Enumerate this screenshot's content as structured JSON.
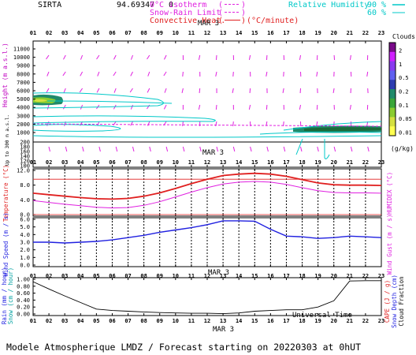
{
  "header": {
    "site": "SIRTA",
    "coords": "94.69347",
    "coords_suffix": "0",
    "legend_left": [
      {
        "label": "0°C isotherm",
        "swatch": "(---)",
        "color": "#e020e0"
      },
      {
        "label": "Snow-Rain Limit",
        "swatch": "(---)",
        "color": "#e020e0"
      },
      {
        "label": "Convective Heat.",
        "swatch": "(——)",
        "unit": "(°C/minute)",
        "color": "#e02020"
      }
    ],
    "rh_title": "Relative Humidity",
    "rh_levels": [
      "90 %",
      "60 %"
    ],
    "rh_color": "#00c8c8"
  },
  "colors": {
    "magenta": "#e020e0",
    "red": "#e02020",
    "blue": "#2020e0",
    "cyan": "#00c8c8",
    "black": "#000000"
  },
  "date_label": "MAR  3",
  "hours": [
    "01",
    "02",
    "03",
    "04",
    "05",
    "06",
    "07",
    "08",
    "09",
    "10",
    "11",
    "12",
    "13",
    "14",
    "15",
    "16",
    "17",
    "18",
    "19",
    "20",
    "21",
    "22",
    "23"
  ],
  "panels": {
    "height": {
      "ylabel": "Height  (m  a.s.l.)",
      "ylabel_low": "Up to 300 m  a.s.l.",
      "ticks_upper": [
        "11000",
        "10000",
        "9000",
        "8000",
        "7000",
        "6000",
        "5000",
        "4000",
        "3000",
        "2000",
        "1000"
      ],
      "ticks_lower": [
        "200",
        "180",
        "160",
        "140",
        "120",
        "100"
      ],
      "clouds_title": "Clouds",
      "clouds_levels": [
        "1",
        "0.5",
        "0.2",
        "0.1",
        "0.05",
        "0.01"
      ],
      "clouds_ticks": [
        "2",
        "1",
        "0.5",
        "0.2",
        "0.1",
        "0.05",
        "0.01"
      ],
      "clouds_unit": "(g/kg)",
      "clouds_colors": [
        "#7a0a8a",
        "#d020ff",
        "#8a3af0",
        "#6060f0",
        "#2d3db0",
        "#1f8a6a",
        "#3aa63a",
        "#8acc30",
        "#d4e040",
        "#ffff50"
      ]
    },
    "temperature": {
      "ylabel": "Temperature (°C)",
      "ylabel_right": "HUMIDEX (°C)",
      "ticks": [
        "12.0",
        "8.0",
        "4.0",
        "0.0"
      ],
      "ylim": [
        0,
        12
      ]
    },
    "wind": {
      "ylabel": "Wind Speed (m / s)",
      "ylabel_right": "Wind Gust (m / s)",
      "ticks": [
        "6.0",
        "5.0",
        "4.0",
        "3.0",
        "2.0",
        "1.0",
        "0.0"
      ],
      "ylim": [
        0,
        6
      ]
    },
    "rain": {
      "ylabel": "Rain (mm / hour)",
      "ylabel2": "Snow (cm / hour)",
      "ylabel_right": "CAPE (J / g)",
      "ylabel_right2": "Snow Depth (cm)",
      "ylabel_right3": "Cloud Fraction",
      "ticks": [
        "1.00",
        "0.80",
        "0.60",
        "0.40",
        "0.20",
        "0.00"
      ],
      "ylim": [
        0,
        1
      ]
    }
  },
  "xlabel": "Universal Time",
  "footer": "Modele Atmospherique LMDZ / Forecast starting on 20220303 at 0hUT",
  "chart_data": [
    {
      "type": "line",
      "title": "Temperature / HUMIDEX",
      "x": [
        1,
        2,
        3,
        4,
        5,
        6,
        7,
        8,
        9,
        10,
        11,
        12,
        13,
        14,
        15,
        16,
        17,
        18,
        19,
        20,
        21,
        22,
        23
      ],
      "ylim": [
        0,
        12
      ],
      "series": [
        {
          "name": "Temperature",
          "color": "#e02020",
          "values": [
            5.8,
            5.4,
            5.0,
            4.6,
            4.3,
            4.2,
            4.4,
            5.0,
            5.9,
            7.1,
            8.4,
            9.6,
            10.6,
            11.0,
            11.2,
            11.0,
            10.4,
            9.5,
            8.6,
            8.1,
            8.0,
            8.0,
            7.9
          ]
        },
        {
          "name": "HUMIDEX",
          "color": "#e020e0",
          "values": [
            3.8,
            3.3,
            2.8,
            2.4,
            2.0,
            1.8,
            1.9,
            2.5,
            3.5,
            4.8,
            6.1,
            7.3,
            8.3,
            8.8,
            9.0,
            8.8,
            8.2,
            7.3,
            6.5,
            6.0,
            5.9,
            5.9,
            5.8
          ]
        }
      ],
      "reference_lines": [
        {
          "y": 9.6,
          "color": "#e02020"
        },
        {
          "y": 0.0,
          "color": "#e02020"
        }
      ]
    },
    {
      "type": "line",
      "title": "Wind Speed",
      "x": [
        1,
        2,
        3,
        4,
        5,
        6,
        7,
        8,
        9,
        10,
        11,
        12,
        13,
        14,
        15,
        16,
        17,
        18,
        19,
        20,
        21,
        22,
        23
      ],
      "ylim": [
        0,
        6
      ],
      "series": [
        {
          "name": "Wind Speed",
          "color": "#2020e0",
          "values": [
            3.0,
            3.0,
            2.9,
            3.0,
            3.1,
            3.3,
            3.6,
            3.9,
            4.3,
            4.6,
            4.9,
            5.3,
            5.8,
            5.8,
            5.75,
            4.7,
            3.8,
            3.7,
            3.5,
            3.6,
            3.8,
            3.7,
            3.6
          ]
        }
      ]
    },
    {
      "type": "line",
      "title": "Cloud fraction",
      "x": [
        1,
        2,
        3,
        4,
        5,
        6,
        7,
        8,
        9,
        10,
        11,
        12,
        13,
        14,
        15,
        16,
        17,
        18,
        19,
        20,
        21,
        22,
        23
      ],
      "ylim": [
        0,
        1
      ],
      "series": [
        {
          "name": "Cloud Fraction",
          "color": "#000000",
          "values": [
            0.93,
            0.72,
            0.52,
            0.33,
            0.14,
            0.1,
            0.08,
            0.06,
            0.04,
            0.03,
            0.02,
            0.02,
            0.01,
            0.03,
            0.08,
            0.1,
            0.12,
            0.12,
            0.2,
            0.38,
            0.95,
            0.96,
            0.96
          ]
        }
      ]
    }
  ]
}
